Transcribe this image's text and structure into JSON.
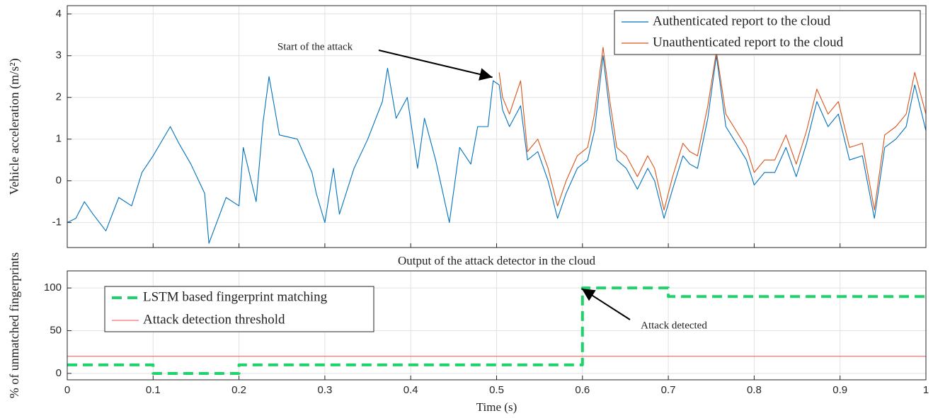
{
  "chart_data": [
    {
      "type": "line",
      "ylabel": "Vehicle acceleration (m/s²)",
      "annotations": [
        "Start of the attack"
      ],
      "x": [
        0,
        0.01,
        0.02,
        0.03,
        0.045,
        0.06,
        0.075,
        0.087,
        0.1,
        0.12,
        0.13,
        0.144,
        0.16,
        0.165,
        0.185,
        0.2,
        0.205,
        0.22,
        0.228,
        0.235,
        0.247,
        0.268,
        0.285,
        0.29,
        0.3,
        0.31,
        0.317,
        0.334,
        0.35,
        0.367,
        0.373,
        0.383,
        0.396,
        0.408,
        0.416,
        0.429,
        0.445,
        0.457,
        0.47,
        0.478,
        0.49,
        0.496,
        0.503,
        0.507,
        0.515,
        0.528,
        0.536,
        0.548,
        0.56,
        0.571,
        0.581,
        0.594,
        0.606,
        0.614,
        0.624,
        0.632,
        0.64,
        0.651,
        0.664,
        0.676,
        0.684,
        0.695,
        0.705,
        0.717,
        0.725,
        0.734,
        0.746,
        0.756,
        0.767,
        0.779,
        0.791,
        0.8,
        0.812,
        0.824,
        0.837,
        0.849,
        0.861,
        0.873,
        0.886,
        0.898,
        0.911,
        0.926,
        0.94,
        0.952,
        0.965,
        0.977,
        0.987,
        1.0
      ],
      "series": [
        {
          "name": "Authenticated report to the cloud",
          "color": "#0072bd",
          "values": [
            -1.0,
            -0.9,
            -0.5,
            -0.8,
            -1.2,
            -0.4,
            -0.6,
            0.2,
            0.6,
            1.3,
            0.9,
            0.4,
            -0.3,
            -1.5,
            -0.4,
            -0.6,
            0.8,
            -0.5,
            1.4,
            2.5,
            1.1,
            1.0,
            0.2,
            -0.3,
            -1.0,
            0.3,
            -0.8,
            0.3,
            1.0,
            1.9,
            2.7,
            1.5,
            2.0,
            0.3,
            1.5,
            0.5,
            -1.0,
            0.8,
            0.4,
            1.3,
            1.3,
            2.4,
            2.3,
            1.7,
            1.3,
            1.8,
            0.5,
            0.7,
            0.0,
            -0.9,
            -0.3,
            0.3,
            0.5,
            1.2,
            3.0,
            1.6,
            0.5,
            0.3,
            -0.2,
            0.3,
            0.0,
            -0.9,
            -0.2,
            0.6,
            0.4,
            0.3,
            1.5,
            3.0,
            1.3,
            0.9,
            0.5,
            -0.1,
            0.2,
            0.2,
            0.8,
            0.1,
            0.9,
            1.9,
            1.3,
            1.6,
            0.5,
            0.6,
            -0.9,
            0.8,
            1.0,
            1.3,
            2.3,
            1.2
          ]
        },
        {
          "name": "Unauthenticated report to the cloud",
          "color": "#d95319",
          "values": [
            null,
            null,
            null,
            null,
            null,
            null,
            null,
            null,
            null,
            null,
            null,
            null,
            null,
            null,
            null,
            null,
            null,
            null,
            null,
            null,
            null,
            null,
            null,
            null,
            null,
            null,
            null,
            null,
            null,
            null,
            null,
            null,
            null,
            null,
            null,
            null,
            null,
            null,
            null,
            null,
            null,
            null,
            2.6,
            2.0,
            1.6,
            2.4,
            0.7,
            1.0,
            0.3,
            -0.6,
            0.0,
            0.6,
            0.8,
            1.6,
            3.2,
            1.9,
            0.8,
            0.6,
            0.1,
            0.6,
            0.3,
            -0.7,
            0.1,
            0.9,
            0.7,
            0.6,
            1.8,
            3.1,
            1.6,
            1.2,
            0.8,
            0.2,
            0.5,
            0.5,
            1.1,
            0.4,
            1.2,
            2.2,
            1.6,
            1.9,
            0.8,
            0.9,
            -0.7,
            1.1,
            1.3,
            1.6,
            2.6,
            1.6
          ]
        }
      ],
      "xlim": [
        0,
        1
      ],
      "xticks": [
        0,
        0.1,
        0.2,
        0.3,
        0.4,
        0.5,
        0.6,
        0.7,
        0.8,
        0.9,
        1
      ],
      "ylim": [
        -1.6,
        4.2
      ],
      "yticks": [
        -1,
        0,
        1,
        2,
        3,
        4
      ],
      "grid": true,
      "legend": "upper right"
    },
    {
      "type": "line",
      "step": "post",
      "title": "Output of the attack detector in the cloud",
      "xlabel": "Time (s)",
      "ylabel": "% of unmatched fingerprints",
      "annotations": [
        "Attack detected"
      ],
      "x": [
        0,
        0.1,
        0.2,
        0.6,
        0.7,
        1
      ],
      "series": [
        {
          "name": "LSTM based fingerprint matching",
          "color": "#1fd36b",
          "dashed": true,
          "values": [
            10,
            0,
            10,
            100,
            90,
            90
          ]
        },
        {
          "name": "Attack detection threshold",
          "color": "#ff7070",
          "values": [
            20,
            20,
            20,
            20,
            20,
            20
          ]
        }
      ],
      "xlim": [
        0,
        1
      ],
      "xticks": [
        0,
        0.1,
        0.2,
        0.3,
        0.4,
        0.5,
        0.6,
        0.7,
        0.8,
        0.9,
        1
      ],
      "ylim": [
        -7.5,
        120
      ],
      "yticks": [
        0,
        50,
        100
      ],
      "grid": true,
      "legend": "upper left"
    }
  ]
}
